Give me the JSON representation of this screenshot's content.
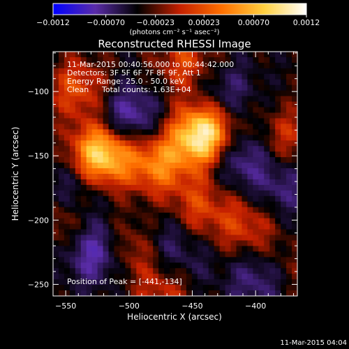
{
  "chart_data": {
    "type": "heatmap",
    "title": "Reconstructed RHESSI Image",
    "xlabel": "Heliocentric X (arcsec)",
    "ylabel": "Heliocentric Y (arcsec)",
    "xlim": [
      -560,
      -367
    ],
    "ylim": [
      -259,
      -69
    ],
    "x_ticks": [
      -550,
      -500,
      -450,
      -400
    ],
    "y_ticks": [
      -250,
      -200,
      -150,
      -100
    ],
    "x_tick_labels": [
      "−550",
      "−500",
      "−450",
      "−400"
    ],
    "y_tick_labels": [
      "−250",
      "−200",
      "−150",
      "−100"
    ],
    "colorbar": {
      "range": [
        -0.0012,
        0.0012
      ],
      "tick_values": [
        -0.0012,
        -0.0007,
        -0.00023,
        0.00023,
        0.0007,
        0.0012
      ],
      "tick_labels": [
        "−0.0012",
        "−0.00070",
        "−0.00023",
        "0.00023",
        "0.00070",
        "0.0012"
      ],
      "unit_label": "(photons cm⁻² s⁻¹ asec⁻²)",
      "colors": [
        "#0000ff",
        "#5a2ca8",
        "#000000",
        "#c42000",
        "#ff7000",
        "#ffd040",
        "#ffffff"
      ]
    },
    "annotations": {
      "time_range": "11-Mar-2015 00:40:56.000 to 00:44:42.000",
      "detectors": "Detectors: 3F 5F 6F 7F 8F 9F, Att 1",
      "energy": "Energy Range: 25.0 - 50.0 keV",
      "method": "Clean",
      "counts": "Total counts: 1.63E+04",
      "peak": "Position of Peak = [-441,-134]"
    },
    "peak": [
      -441,
      -134
    ],
    "sources": [
      {
        "x": -441,
        "y": -134,
        "value": 0.00118
      },
      {
        "x": -522,
        "y": -149,
        "value": 0.00102
      },
      {
        "x": -478,
        "y": -156,
        "value": 0.00062
      },
      {
        "x": -500,
        "y": -222,
        "value": 0.00042
      },
      {
        "x": -407,
        "y": -205,
        "value": 0.00038
      },
      {
        "x": -540,
        "y": -98,
        "value": 0.00045
      },
      {
        "x": -455,
        "y": -78,
        "value": 0.00042
      },
      {
        "x": -470,
        "y": -255,
        "value": 0.0004
      },
      {
        "x": -375,
        "y": -135,
        "value": 0.00033
      },
      {
        "x": -555,
        "y": -200,
        "value": 0.0003
      },
      {
        "x": -380,
        "y": -240,
        "value": 0.00028
      },
      {
        "x": -445,
        "y": -190,
        "value": 0.0004
      },
      {
        "x": -500,
        "y": -120,
        "value": -0.0005
      },
      {
        "x": -525,
        "y": -225,
        "value": -0.00055
      },
      {
        "x": -415,
        "y": -150,
        "value": -0.00045
      },
      {
        "x": -395,
        "y": -245,
        "value": -0.00045
      },
      {
        "x": -545,
        "y": -175,
        "value": -0.0003
      },
      {
        "x": -425,
        "y": -100,
        "value": -0.0003
      },
      {
        "x": -470,
        "y": -215,
        "value": -0.00025
      },
      {
        "x": -380,
        "y": -175,
        "value": -0.0003
      },
      {
        "x": -455,
        "y": -240,
        "value": -0.0002
      }
    ]
  },
  "footer": {
    "timestamp": "11-Mar-2015 04:04"
  }
}
